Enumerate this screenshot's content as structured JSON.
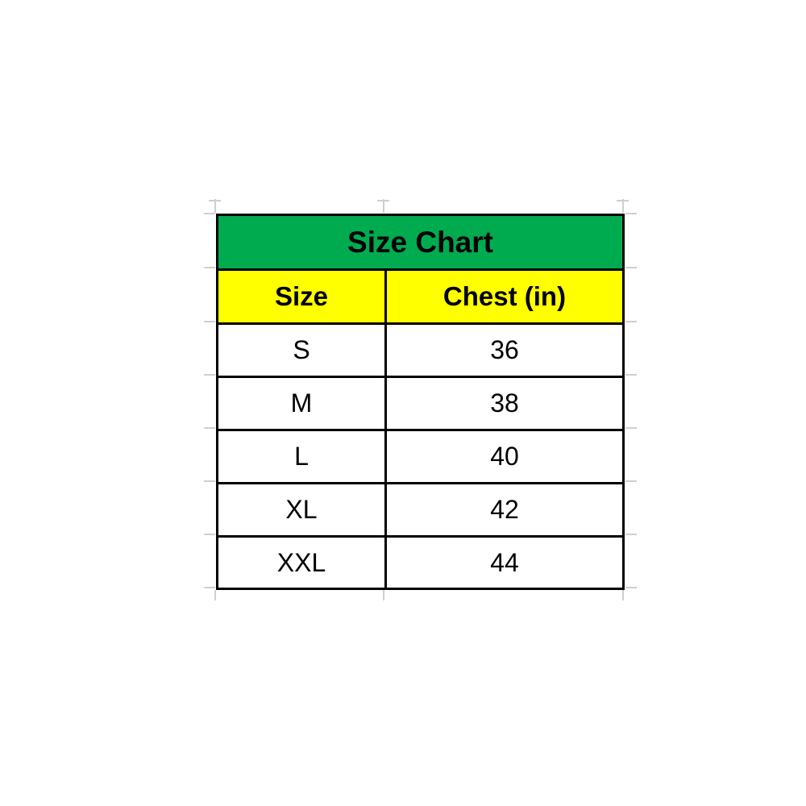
{
  "chart_data": {
    "type": "table",
    "title": "Size Chart",
    "columns": [
      "Size",
      "Chest (in)"
    ],
    "rows": [
      [
        "S",
        "36"
      ],
      [
        "M",
        "38"
      ],
      [
        "L",
        "40"
      ],
      [
        "XL",
        "42"
      ],
      [
        "XXL",
        "44"
      ]
    ]
  },
  "table": {
    "title": "Size Chart",
    "col1_header": "Size",
    "col2_header": "Chest (in)",
    "rows": [
      {
        "size": "S",
        "chest": "36"
      },
      {
        "size": "M",
        "chest": "38"
      },
      {
        "size": "L",
        "chest": "40"
      },
      {
        "size": "XL",
        "chest": "42"
      },
      {
        "size": "XXL",
        "chest": "44"
      }
    ]
  },
  "colors": {
    "title_bg": "#00ab50",
    "header_bg": "#ffff00",
    "border": "#000000",
    "gridline": "#cfcfcf",
    "text": "#000000"
  }
}
